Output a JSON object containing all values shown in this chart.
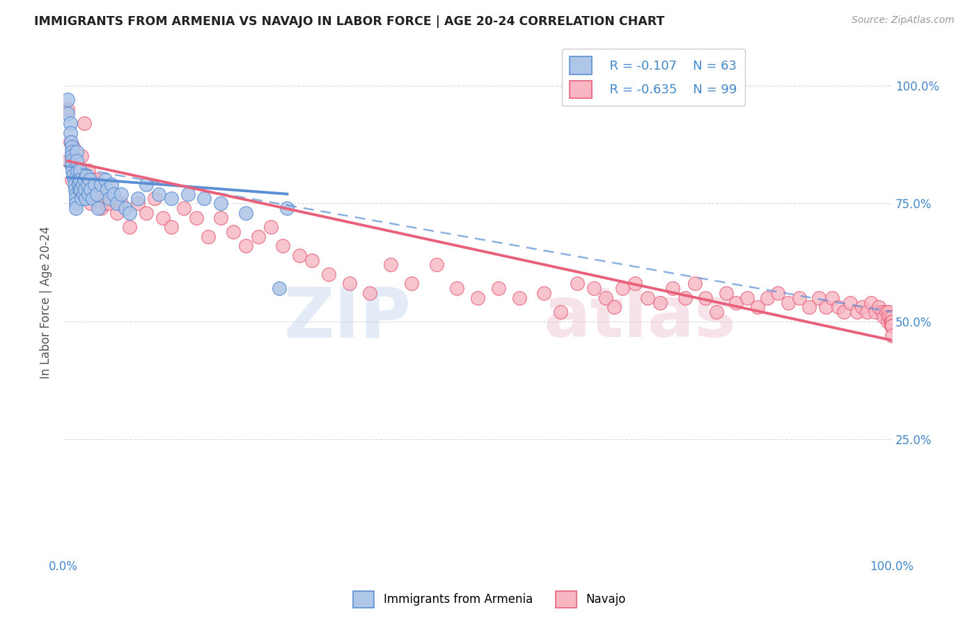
{
  "title": "IMMIGRANTS FROM ARMENIA VS NAVAJO IN LABOR FORCE | AGE 20-24 CORRELATION CHART",
  "source": "Source: ZipAtlas.com",
  "ylabel": "In Labor Force | Age 20-24",
  "ytick_labels": [
    "",
    "25.0%",
    "50.0%",
    "75.0%",
    "100.0%"
  ],
  "ytick_values": [
    0,
    0.25,
    0.5,
    0.75,
    1.0
  ],
  "xrange": [
    0,
    1.0
  ],
  "yrange": [
    0,
    1.08
  ],
  "armenia_color": "#aec6e8",
  "navajo_color": "#f7b6c2",
  "armenia_line_color": "#5b8fd4",
  "navajo_line_color": "#e8607a",
  "legend_R_armenia": "R = -0.107",
  "legend_N_armenia": "N = 63",
  "legend_R_navajo": "R = -0.635",
  "legend_N_navajo": "N = 99",
  "watermark_zip": "ZIP",
  "watermark_atlas": "atlas",
  "title_color": "#222222",
  "axis_label_color": "#4488cc",
  "background_color": "#ffffff",
  "grid_color": "#d8d8d8",
  "armenia_scatter": {
    "x": [
      0.005,
      0.005,
      0.008,
      0.008,
      0.009,
      0.01,
      0.01,
      0.01,
      0.01,
      0.01,
      0.011,
      0.012,
      0.013,
      0.013,
      0.014,
      0.015,
      0.015,
      0.015,
      0.015,
      0.016,
      0.016,
      0.017,
      0.018,
      0.018,
      0.019,
      0.02,
      0.02,
      0.021,
      0.022,
      0.023,
      0.024,
      0.025,
      0.026,
      0.027,
      0.028,
      0.029,
      0.03,
      0.032,
      0.033,
      0.035,
      0.038,
      0.04,
      0.042,
      0.045,
      0.05,
      0.053,
      0.055,
      0.058,
      0.06,
      0.065,
      0.07,
      0.075,
      0.08,
      0.09,
      0.1,
      0.115,
      0.13,
      0.15,
      0.17,
      0.19,
      0.22,
      0.26,
      0.27
    ],
    "y": [
      0.97,
      0.94,
      0.92,
      0.9,
      0.88,
      0.87,
      0.86,
      0.85,
      0.84,
      0.83,
      0.82,
      0.81,
      0.8,
      0.79,
      0.78,
      0.77,
      0.76,
      0.75,
      0.74,
      0.86,
      0.84,
      0.82,
      0.8,
      0.79,
      0.78,
      0.82,
      0.8,
      0.78,
      0.76,
      0.79,
      0.77,
      0.8,
      0.78,
      0.76,
      0.81,
      0.79,
      0.77,
      0.8,
      0.78,
      0.76,
      0.79,
      0.77,
      0.74,
      0.79,
      0.8,
      0.78,
      0.76,
      0.79,
      0.77,
      0.75,
      0.77,
      0.74,
      0.73,
      0.76,
      0.79,
      0.77,
      0.76,
      0.77,
      0.76,
      0.75,
      0.73,
      0.57,
      0.74
    ]
  },
  "navajo_scatter": {
    "x": [
      0.005,
      0.006,
      0.008,
      0.01,
      0.012,
      0.015,
      0.018,
      0.02,
      0.022,
      0.025,
      0.028,
      0.03,
      0.033,
      0.035,
      0.038,
      0.04,
      0.045,
      0.05,
      0.055,
      0.06,
      0.065,
      0.07,
      0.08,
      0.09,
      0.1,
      0.11,
      0.12,
      0.13,
      0.145,
      0.16,
      0.175,
      0.19,
      0.205,
      0.22,
      0.235,
      0.25,
      0.265,
      0.285,
      0.3,
      0.32,
      0.345,
      0.37,
      0.395,
      0.42,
      0.45,
      0.475,
      0.5,
      0.525,
      0.55,
      0.58,
      0.6,
      0.62,
      0.64,
      0.655,
      0.665,
      0.675,
      0.69,
      0.705,
      0.72,
      0.735,
      0.75,
      0.762,
      0.775,
      0.788,
      0.8,
      0.812,
      0.825,
      0.838,
      0.85,
      0.862,
      0.875,
      0.888,
      0.9,
      0.912,
      0.92,
      0.928,
      0.935,
      0.942,
      0.95,
      0.958,
      0.964,
      0.97,
      0.975,
      0.98,
      0.984,
      0.988,
      0.99,
      0.993,
      0.995,
      0.996,
      0.997,
      0.998,
      0.999,
      0.999,
      1.0,
      1.0,
      1.0,
      1.0,
      1.0
    ],
    "y": [
      0.95,
      0.84,
      0.88,
      0.8,
      0.87,
      0.84,
      0.78,
      0.82,
      0.85,
      0.92,
      0.78,
      0.82,
      0.75,
      0.8,
      0.77,
      0.8,
      0.74,
      0.75,
      0.75,
      0.77,
      0.73,
      0.75,
      0.7,
      0.75,
      0.73,
      0.76,
      0.72,
      0.7,
      0.74,
      0.72,
      0.68,
      0.72,
      0.69,
      0.66,
      0.68,
      0.7,
      0.66,
      0.64,
      0.63,
      0.6,
      0.58,
      0.56,
      0.62,
      0.58,
      0.62,
      0.57,
      0.55,
      0.57,
      0.55,
      0.56,
      0.52,
      0.58,
      0.57,
      0.55,
      0.53,
      0.57,
      0.58,
      0.55,
      0.54,
      0.57,
      0.55,
      0.58,
      0.55,
      0.52,
      0.56,
      0.54,
      0.55,
      0.53,
      0.55,
      0.56,
      0.54,
      0.55,
      0.53,
      0.55,
      0.53,
      0.55,
      0.53,
      0.52,
      0.54,
      0.52,
      0.53,
      0.52,
      0.54,
      0.52,
      0.53,
      0.52,
      0.51,
      0.52,
      0.5,
      0.52,
      0.51,
      0.5,
      0.5,
      0.49,
      0.51,
      0.5,
      0.49,
      0.49,
      0.47
    ]
  },
  "dashed_line": {
    "x0": 0.0,
    "x1": 1.0,
    "y0": 0.83,
    "y1": 0.52
  },
  "armenia_line": {
    "x0": 0.005,
    "x1": 0.27,
    "y0": 0.805,
    "y1": 0.77
  },
  "navajo_line": {
    "x0": 0.005,
    "x1": 1.0,
    "y0": 0.84,
    "y1": 0.46
  }
}
